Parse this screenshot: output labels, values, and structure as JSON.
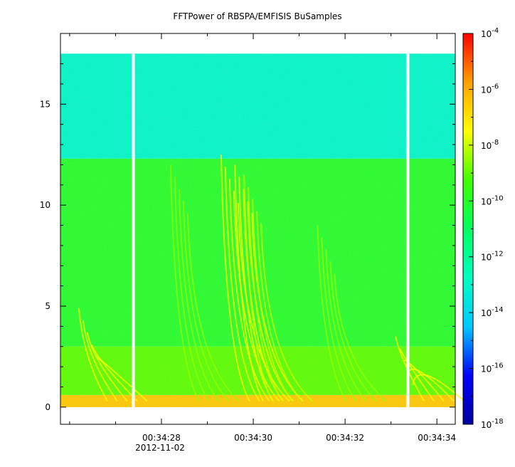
{
  "title": "FFTPower of RBSPA/EMFISIS  BuSamples",
  "chart_data": {
    "type": "heatmap",
    "title": "FFTPower of RBSPA/EMFISIS  BuSamples",
    "xlabel": "",
    "ylabel": "",
    "x_date": "2012-11-02",
    "x_tick_labels": [
      "00:34:28",
      "00:34:30",
      "00:34:32",
      "00:34:34"
    ],
    "x_tick_seconds": [
      28,
      30,
      32,
      34
    ],
    "xlim_seconds": [
      25.8,
      34.4
    ],
    "y_ticks": [
      0,
      5,
      10,
      15
    ],
    "ylim": [
      -0.85,
      18.5
    ],
    "data_ymax": 17.5,
    "data_gaps_seconds": [
      [
        27.35,
        27.42
      ],
      [
        33.33,
        33.4
      ]
    ],
    "colorbar": {
      "scale": "log",
      "range": [
        1e-18,
        0.0001
      ],
      "tick_labels": [
        {
          "base": "10",
          "exp": "-4",
          "value": 0.0001
        },
        {
          "base": "10",
          "exp": "-6",
          "value": 1e-06
        },
        {
          "base": "10",
          "exp": "-8",
          "value": 1e-08
        },
        {
          "base": "10",
          "exp": "-10",
          "value": 1e-10
        },
        {
          "base": "10",
          "exp": "-12",
          "value": 1e-12
        },
        {
          "base": "10",
          "exp": "-14",
          "value": 1e-14
        },
        {
          "base": "10",
          "exp": "-16",
          "value": 1e-16
        },
        {
          "base": "10",
          "exp": "-18",
          "value": 1e-18
        }
      ],
      "colormap": [
        "#0000a0",
        "#0000ff",
        "#00c8ff",
        "#00ffc0",
        "#00ff60",
        "#40ff00",
        "#ffff00",
        "#ffa000",
        "#ff0000"
      ]
    },
    "bands": [
      {
        "y_from": 12.3,
        "y_to": 17.5,
        "log_power": -13.0
      },
      {
        "y_from": 3.0,
        "y_to": 12.3,
        "log_power": -10.0
      },
      {
        "y_from": 0.6,
        "y_to": 3.0,
        "log_power": -9.0
      },
      {
        "y_from": 0.0,
        "y_to": 0.6,
        "log_power": -6.5
      }
    ],
    "features": [
      {
        "x_seconds": 26.2,
        "y_top": 4.9,
        "log_power": -7.5
      },
      {
        "x_seconds": 28.2,
        "y_top": 12.0,
        "log_power": -8.5
      },
      {
        "x_seconds": 29.3,
        "y_top": 12.5,
        "log_power": -7.5
      },
      {
        "x_seconds": 29.6,
        "y_top": 12.0,
        "log_power": -7.5
      },
      {
        "x_seconds": 29.8,
        "y_top": 11.5,
        "log_power": -8.0
      },
      {
        "x_seconds": 31.4,
        "y_top": 9.0,
        "log_power": -8.5
      },
      {
        "x_seconds": 33.1,
        "y_top": 3.5,
        "log_power": -7.5
      }
    ]
  }
}
